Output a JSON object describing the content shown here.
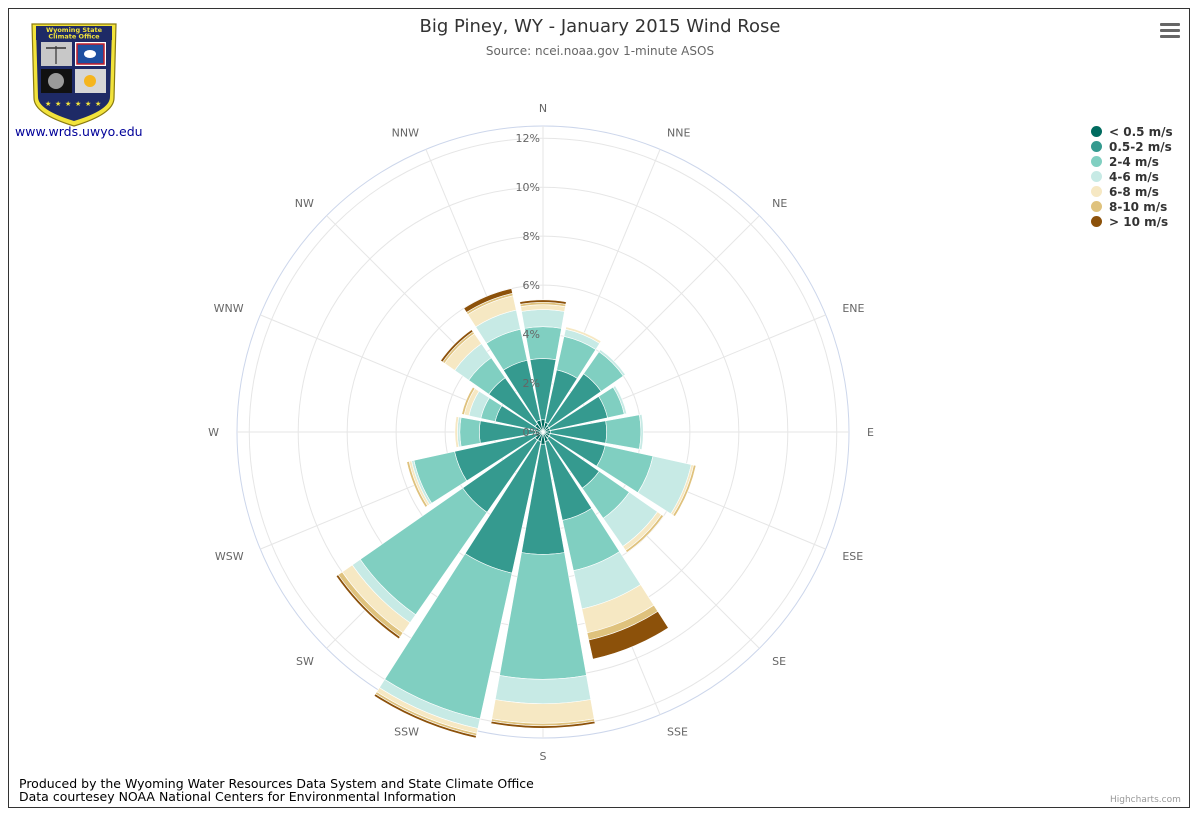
{
  "header": {
    "title": "Big Piney, WY - January 2015 Wind Rose",
    "subtitle": "Source: ncei.noaa.gov 1-minute ASOS"
  },
  "logo": {
    "banner_line1": "Wyoming State",
    "banner_line2": "Climate Office",
    "link_text": "www.wrds.uwyo.edu"
  },
  "footer": {
    "line1": "Produced by the Wyoming Water Resources Data System and State Climate Office",
    "line2": "Data courtesey NOAA National Centers for Environmental Information"
  },
  "credits": "Highcharts.com",
  "menu_icon": "hamburger-menu-icon",
  "chart_data": {
    "type": "bar",
    "polar": true,
    "stacked": true,
    "categories": [
      "N",
      "NNE",
      "NE",
      "ENE",
      "E",
      "ESE",
      "SE",
      "SSE",
      "S",
      "SSW",
      "SW",
      "WSW",
      "W",
      "WNW",
      "NW",
      "NNW"
    ],
    "y_tick_labels": [
      "0%",
      "2%",
      "4%",
      "6%",
      "8%",
      "10%",
      "12%"
    ],
    "ylim": [
      0,
      12.5
    ],
    "legend_position": "top-right",
    "series": [
      {
        "name": "< 0.5 m/s",
        "color": "#006b5f",
        "values": [
          0.5,
          0.4,
          0.3,
          0.3,
          0.3,
          0.3,
          0.3,
          0.4,
          0.5,
          0.4,
          0.4,
          0.3,
          0.3,
          0.3,
          0.4,
          0.5
        ]
      },
      {
        "name": "0.5-2 m/s",
        "color": "#359a8f",
        "values": [
          2.5,
          2.2,
          2.6,
          2.4,
          2.3,
          2.3,
          2.5,
          3.3,
          4.5,
          5.5,
          3.6,
          3.4,
          2.3,
          1.7,
          2.3,
          2.5
        ]
      },
      {
        "name": "2-4 m/s",
        "color": "#80cfc1",
        "values": [
          1.3,
          1.4,
          1.1,
          0.7,
          1.4,
          2.0,
          1.5,
          2.1,
          5.1,
          6.1,
          5.1,
          1.7,
          0.8,
          0.6,
          1.0,
          1.3
        ]
      },
      {
        "name": "4-6 m/s",
        "color": "#c7eae5",
        "values": [
          0.7,
          0.3,
          0.1,
          0.1,
          0.1,
          1.6,
          1.4,
          1.6,
          1.0,
          0.4,
          0.4,
          0.1,
          0.1,
          0.5,
          0.7,
          0.8
        ]
      },
      {
        "name": "6-8 m/s",
        "color": "#f6e8c3",
        "values": [
          0.2,
          0.1,
          0.0,
          0.0,
          0.0,
          0.1,
          0.2,
          1.0,
          0.8,
          0.2,
          0.5,
          0.1,
          0.1,
          0.2,
          0.5,
          0.6
        ]
      },
      {
        "name": "8-10 m/s",
        "color": "#dfc27d",
        "values": [
          0.1,
          0.0,
          0.0,
          0.0,
          0.0,
          0.1,
          0.1,
          0.3,
          0.1,
          0.1,
          0.2,
          0.1,
          0.0,
          0.1,
          0.1,
          0.1
        ]
      },
      {
        "name": "> 10 m/s",
        "color": "#8c510a",
        "values": [
          0.1,
          0.0,
          0.0,
          0.0,
          0.0,
          0.0,
          0.0,
          0.8,
          0.1,
          0.1,
          0.1,
          0.0,
          0.0,
          0.0,
          0.1,
          0.2
        ]
      }
    ]
  }
}
